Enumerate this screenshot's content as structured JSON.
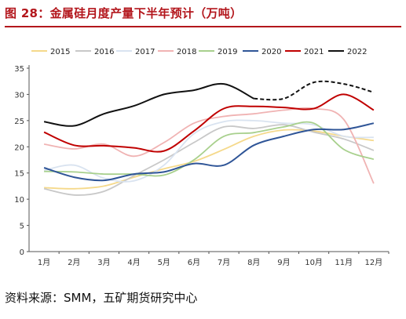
{
  "title": "图 28：金属硅月度产量下半年预计（万吨）",
  "source": "资料来源：SMM，五矿期货研究中心",
  "chart_data": {
    "type": "line",
    "categories": [
      "1月",
      "2月",
      "3月",
      "4月",
      "5月",
      "6月",
      "7月",
      "8月",
      "9月",
      "10月",
      "11月",
      "12月"
    ],
    "ylim": [
      0,
      35
    ],
    "yticks": [
      0,
      5,
      10,
      15,
      20,
      25,
      30,
      35
    ],
    "grid": false,
    "legend_position": "top",
    "series": [
      {
        "name": "2015",
        "color": "#f5d98b",
        "dashed_from": null,
        "values": [
          12.2,
          12.0,
          12.5,
          14.2,
          15.8,
          17.2,
          19.5,
          22.0,
          23.2,
          23.0,
          22.0,
          21.2
        ]
      },
      {
        "name": "2016",
        "color": "#c8c8c8",
        "dashed_from": null,
        "values": [
          12.0,
          10.8,
          11.5,
          14.5,
          17.5,
          20.8,
          23.8,
          23.5,
          24.2,
          22.8,
          21.5,
          19.3
        ]
      },
      {
        "name": "2017",
        "color": "#d9e3f0",
        "dashed_from": null,
        "values": [
          15.5,
          16.5,
          14.0,
          13.5,
          16.5,
          22.5,
          24.8,
          25.0,
          24.5,
          24.2,
          22.0,
          21.8
        ]
      },
      {
        "name": "2018",
        "color": "#f0b3b3",
        "dashed_from": null,
        "values": [
          20.5,
          19.6,
          20.5,
          18.2,
          20.8,
          24.5,
          25.8,
          26.3,
          27.0,
          27.3,
          25.2,
          13.0
        ]
      },
      {
        "name": "2019",
        "color": "#a8d08d",
        "dashed_from": null,
        "values": [
          15.3,
          15.2,
          14.8,
          14.8,
          14.6,
          17.5,
          22.0,
          22.7,
          23.8,
          24.5,
          19.5,
          17.6
        ]
      },
      {
        "name": "2020",
        "color": "#2f5597",
        "dashed_from": null,
        "values": [
          16.0,
          14.2,
          13.6,
          14.8,
          15.2,
          16.8,
          16.5,
          20.3,
          22.0,
          23.3,
          23.3,
          24.5
        ]
      },
      {
        "name": "2021",
        "color": "#c00000",
        "dashed_from": null,
        "values": [
          22.8,
          20.3,
          20.2,
          19.8,
          19.2,
          23.0,
          27.3,
          27.7,
          27.5,
          27.3,
          30.0,
          27.0
        ]
      },
      {
        "name": "2022",
        "color": "#111111",
        "dashed_from": 7,
        "values": [
          24.8,
          24.0,
          26.3,
          27.8,
          30.0,
          30.8,
          32.0,
          29.2,
          29.2,
          32.3,
          32.0,
          30.4
        ]
      }
    ]
  }
}
